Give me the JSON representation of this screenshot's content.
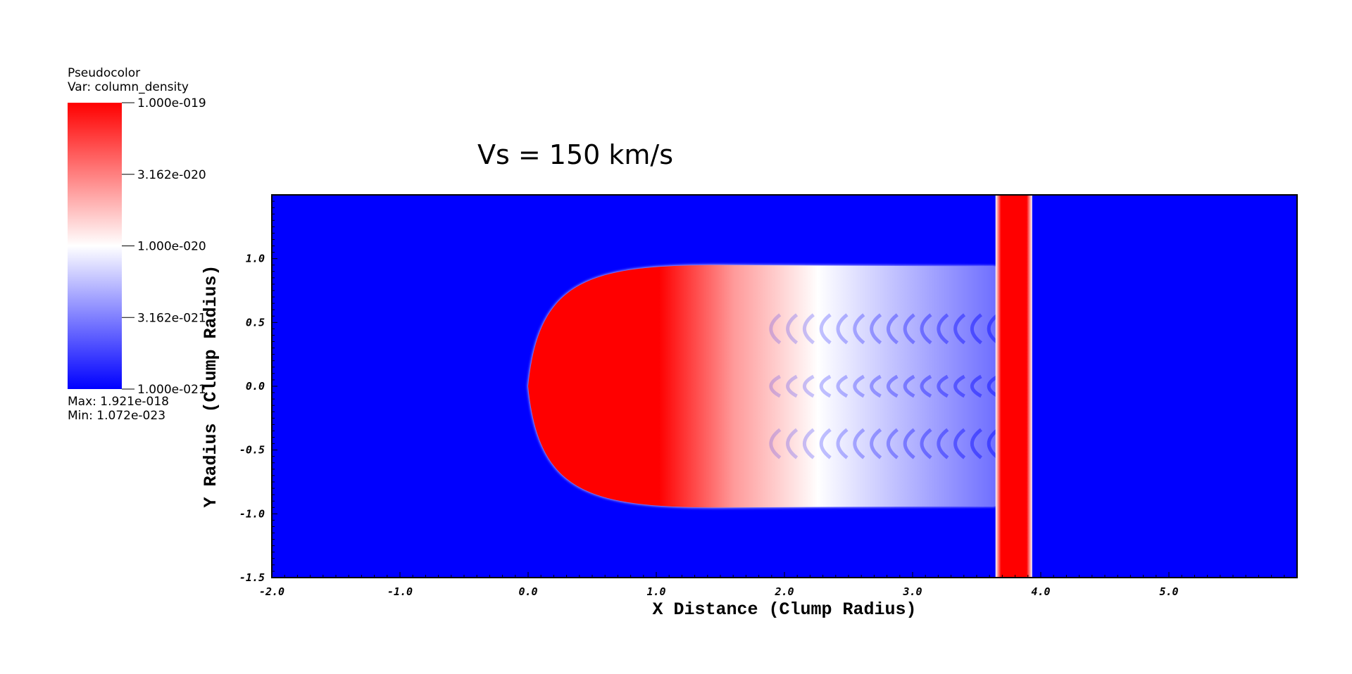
{
  "legend": {
    "title": "Pseudocolor",
    "var_label": "Var: column_density",
    "max_label": "Max:  1.921e-018",
    "min_label": "Min:  1.072e-023"
  },
  "colors": {
    "low": "#0000ff",
    "mid": "#ffffff",
    "high": "#ff0000"
  },
  "chart_data": {
    "type": "heatmap",
    "title": "Vs = 150 km/s",
    "xlabel": "X Distance (Clump Radius)",
    "ylabel": "Y Radius (Clump Radius)",
    "xlim": [
      -2.0,
      6.0
    ],
    "ylim": [
      -1.5,
      1.5
    ],
    "x_ticks": [
      "-2.0",
      "-1.0",
      "0.0",
      "1.0",
      "2.0",
      "3.0",
      "4.0",
      "5.0"
    ],
    "x_tick_values": [
      -2.0,
      -1.0,
      0.0,
      1.0,
      2.0,
      3.0,
      4.0,
      5.0
    ],
    "y_ticks": [
      "-1.5",
      "-1.0",
      "-0.5",
      "0.0",
      "0.5",
      "1.0"
    ],
    "y_tick_values": [
      -1.5,
      -1.0,
      -0.5,
      0.0,
      0.5,
      1.0
    ],
    "colorbar": {
      "scale": "log",
      "range": [
        1e-21,
        1e-19
      ],
      "tick_labels": [
        "1.000e-019",
        "3.162e-020",
        "1.000e-020",
        "3.162e-021",
        "1.000e-021"
      ],
      "tick_values": [
        1e-19,
        3.162e-20,
        1e-20,
        3.162e-21,
        1e-21
      ]
    },
    "features": {
      "clump_front_x": 0.0,
      "clump_half_width_y": 0.95,
      "clump_tail_end_x": 3.65,
      "shock_band_x": [
        3.68,
        3.9
      ]
    }
  }
}
